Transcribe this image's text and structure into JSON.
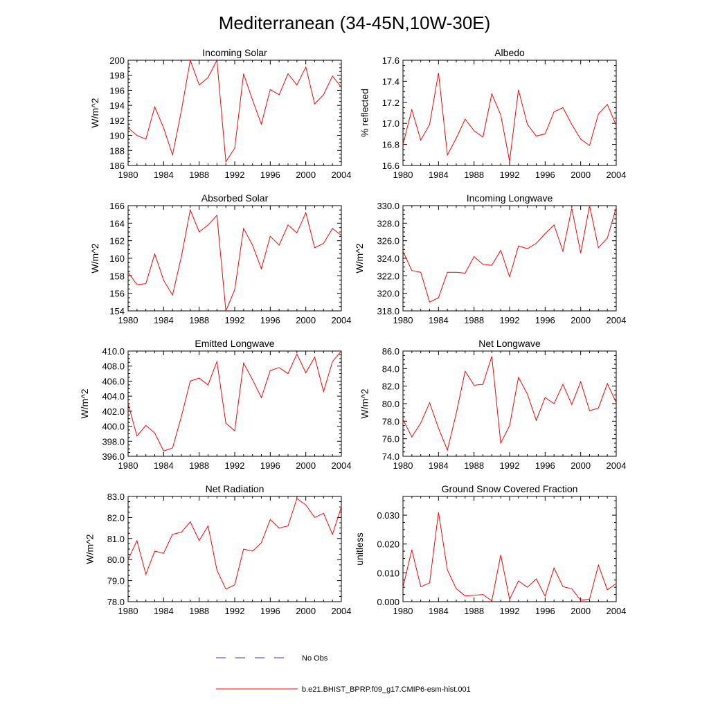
{
  "title": "Mediterranean (34-45N,10W-30E)",
  "chart_data": [
    {
      "type": "line",
      "title": "Incoming Solar",
      "ylabel": "W/m^2",
      "xlim": [
        1980,
        2004
      ],
      "ylim": [
        186,
        200
      ],
      "xticks": [
        "1980",
        "1984",
        "1988",
        "1992",
        "1996",
        "2000",
        "2004"
      ],
      "yticks": [
        "186",
        "188",
        "190",
        "192",
        "194",
        "196",
        "198",
        "200"
      ],
      "x": [
        1980,
        1981,
        1982,
        1983,
        1984,
        1985,
        1986,
        1987,
        1988,
        1989,
        1990,
        1991,
        1992,
        1993,
        1994,
        1995,
        1996,
        1997,
        1998,
        1999,
        2000,
        2001,
        2002,
        2003,
        2004
      ],
      "series": [
        {
          "name": "b.e21.BHIST_BPRP.f09_g17.CMIP6-esm-hist.001",
          "values": [
            191.0,
            190.0,
            189.5,
            193.8,
            191.0,
            187.4,
            193.3,
            200.0,
            196.7,
            197.7,
            200.0,
            186.5,
            188.3,
            198.2,
            194.7,
            191.5,
            196.1,
            195.4,
            198.2,
            196.7,
            199.1,
            194.2,
            195.4,
            197.9,
            196.4
          ]
        }
      ]
    },
    {
      "type": "line",
      "title": "Albedo",
      "ylabel": "% reflected",
      "xlim": [
        1980,
        2004
      ],
      "ylim": [
        16.6,
        17.6
      ],
      "xticks": [
        "1980",
        "1984",
        "1988",
        "1992",
        "1996",
        "2000",
        "2004"
      ],
      "yticks": [
        "16.6",
        "16.8",
        "17.0",
        "17.2",
        "17.4",
        "17.6"
      ],
      "x": [
        1980,
        1981,
        1982,
        1983,
        1984,
        1985,
        1986,
        1987,
        1988,
        1989,
        1990,
        1991,
        1992,
        1993,
        1994,
        1995,
        1996,
        1997,
        1998,
        1999,
        2000,
        2001,
        2002,
        2003,
        2004
      ],
      "series": [
        {
          "name": "b.e21.BHIST_BPRP.f09_g17.CMIP6-esm-hist.001",
          "values": [
            16.8,
            17.13,
            16.84,
            16.99,
            17.48,
            16.7,
            16.86,
            17.04,
            16.93,
            16.87,
            17.28,
            17.08,
            16.64,
            17.32,
            16.99,
            16.88,
            16.9,
            17.11,
            17.15,
            16.99,
            16.85,
            16.79,
            17.09,
            17.18,
            16.98
          ]
        }
      ]
    },
    {
      "type": "line",
      "title": "Absorbed Solar",
      "ylabel": "W/m^2",
      "xlim": [
        1980,
        2004
      ],
      "ylim": [
        154,
        166
      ],
      "xticks": [
        "1980",
        "1984",
        "1988",
        "1992",
        "1996",
        "2000",
        "2004"
      ],
      "yticks": [
        "154",
        "156",
        "158",
        "160",
        "162",
        "164",
        "166"
      ],
      "x": [
        1980,
        1981,
        1982,
        1983,
        1984,
        1985,
        1986,
        1987,
        1988,
        1989,
        1990,
        1991,
        1992,
        1993,
        1994,
        1995,
        1996,
        1997,
        1998,
        1999,
        2000,
        2001,
        2002,
        2003,
        2004
      ],
      "series": [
        {
          "name": "b.e21.BHIST_BPRP.f09_g17.CMIP6-esm-hist.001",
          "values": [
            158.4,
            157.0,
            157.1,
            160.5,
            157.5,
            155.8,
            160.2,
            165.5,
            163.0,
            163.8,
            164.9,
            154.0,
            156.4,
            163.4,
            161.5,
            158.8,
            162.5,
            161.5,
            163.8,
            162.9,
            165.2,
            161.2,
            161.7,
            163.4,
            162.6
          ]
        }
      ]
    },
    {
      "type": "line",
      "title": "Incoming Longwave",
      "ylabel": "W/m^2",
      "xlim": [
        1980,
        2004
      ],
      "ylim": [
        318,
        330
      ],
      "xticks": [
        "1980",
        "1984",
        "1988",
        "1992",
        "1996",
        "2000",
        "2004"
      ],
      "yticks": [
        "318.0",
        "320.0",
        "322.0",
        "324.0",
        "326.0",
        "328.0",
        "330.0"
      ],
      "x": [
        1980,
        1981,
        1982,
        1983,
        1984,
        1985,
        1986,
        1987,
        1988,
        1989,
        1990,
        1991,
        1992,
        1993,
        1994,
        1995,
        1996,
        1997,
        1998,
        1999,
        2000,
        2001,
        2002,
        2003,
        2004
      ],
      "series": [
        {
          "name": "b.e21.BHIST_BPRP.f09_g17.CMIP6-esm-hist.001",
          "values": [
            324.8,
            322.6,
            322.4,
            319.0,
            319.5,
            322.4,
            322.4,
            322.3,
            324.2,
            323.3,
            323.2,
            324.9,
            321.9,
            325.4,
            325.1,
            325.7,
            326.8,
            327.8,
            324.8,
            329.7,
            324.6,
            330.0,
            325.2,
            326.3,
            329.8
          ]
        }
      ]
    },
    {
      "type": "line",
      "title": "Emitted Longwave",
      "ylabel": "W/m^2",
      "xlim": [
        1980,
        2004
      ],
      "ylim": [
        396,
        410
      ],
      "xticks": [
        "1980",
        "1984",
        "1988",
        "1992",
        "1996",
        "2000",
        "2004"
      ],
      "yticks": [
        "396.0",
        "398.0",
        "400.0",
        "402.0",
        "404.0",
        "406.0",
        "408.0",
        "410.0"
      ],
      "x": [
        1980,
        1981,
        1982,
        1983,
        1984,
        1985,
        1986,
        1987,
        1988,
        1989,
        1990,
        1991,
        1992,
        1993,
        1994,
        1995,
        1996,
        1997,
        1998,
        1999,
        2000,
        2001,
        2002,
        2003,
        2004
      ],
      "series": [
        {
          "name": "b.e21.BHIST_BPRP.f09_g17.CMIP6-esm-hist.001",
          "values": [
            403.0,
            398.7,
            400.1,
            399.1,
            396.7,
            397.1,
            401.3,
            406.0,
            406.4,
            405.5,
            408.6,
            400.4,
            399.4,
            408.4,
            406.2,
            403.8,
            407.4,
            407.8,
            407.0,
            409.6,
            407.1,
            409.2,
            404.6,
            408.6,
            410.0
          ]
        }
      ]
    },
    {
      "type": "line",
      "title": "Net Longwave",
      "ylabel": "W/m^2",
      "xlim": [
        1980,
        2004
      ],
      "ylim": [
        74,
        86
      ],
      "xticks": [
        "1980",
        "1984",
        "1988",
        "1992",
        "1996",
        "2000",
        "2004"
      ],
      "yticks": [
        "74.0",
        "76.0",
        "78.0",
        "80.0",
        "82.0",
        "84.0",
        "86.0"
      ],
      "x": [
        1980,
        1981,
        1982,
        1983,
        1984,
        1985,
        1986,
        1987,
        1988,
        1989,
        1990,
        1991,
        1992,
        1993,
        1994,
        1995,
        1996,
        1997,
        1998,
        1999,
        2000,
        2001,
        2002,
        2003,
        2004
      ],
      "series": [
        {
          "name": "b.e21.BHIST_BPRP.f09_g17.CMIP6-esm-hist.001",
          "values": [
            78.2,
            76.2,
            77.8,
            80.1,
            77.2,
            74.7,
            78.9,
            83.7,
            82.1,
            82.2,
            85.4,
            75.5,
            77.5,
            83.0,
            81.1,
            78.1,
            80.7,
            80.0,
            82.2,
            79.9,
            82.5,
            79.2,
            79.5,
            82.3,
            80.1
          ]
        }
      ]
    },
    {
      "type": "line",
      "title": "Net Radiation",
      "ylabel": "W/m^2",
      "xlim": [
        1980,
        2004
      ],
      "ylim": [
        78,
        83
      ],
      "xticks": [
        "1980",
        "1984",
        "1988",
        "1992",
        "1996",
        "2000",
        "2004"
      ],
      "yticks": [
        "78.0",
        "79.0",
        "80.0",
        "81.0",
        "82.0",
        "83.0"
      ],
      "x": [
        1980,
        1981,
        1982,
        1983,
        1984,
        1985,
        1986,
        1987,
        1988,
        1989,
        1990,
        1991,
        1992,
        1993,
        1994,
        1995,
        1996,
        1997,
        1998,
        1999,
        2000,
        2001,
        2002,
        2003,
        2004
      ],
      "series": [
        {
          "name": "b.e21.BHIST_BPRP.f09_g17.CMIP6-esm-hist.001",
          "values": [
            80.0,
            80.9,
            79.3,
            80.4,
            80.3,
            81.2,
            81.3,
            81.8,
            80.9,
            81.6,
            79.5,
            78.6,
            78.8,
            80.5,
            80.4,
            80.8,
            81.9,
            81.5,
            81.6,
            82.9,
            82.6,
            82.0,
            82.2,
            81.2,
            82.5
          ]
        }
      ]
    },
    {
      "type": "line",
      "title": "Ground Snow Covered Fraction",
      "ylabel": "unitless",
      "xlim": [
        1980,
        2004
      ],
      "ylim": [
        0.0,
        0.0365
      ],
      "xticks": [
        "1980",
        "1984",
        "1988",
        "1992",
        "1996",
        "2000",
        "2004"
      ],
      "yticks": [
        "0.000",
        "0.010",
        "0.020",
        "0.030"
      ],
      "ytick_values": [
        0.0,
        0.01,
        0.02,
        0.03
      ],
      "x": [
        1980,
        1981,
        1982,
        1983,
        1984,
        1985,
        1986,
        1987,
        1988,
        1989,
        1990,
        1991,
        1992,
        1993,
        1994,
        1995,
        1996,
        1997,
        1998,
        1999,
        2000,
        2001,
        2002,
        2003,
        2004
      ],
      "series": [
        {
          "name": "b.e21.BHIST_BPRP.f09_g17.CMIP6-esm-hist.001",
          "values": [
            0.005,
            0.018,
            0.0052,
            0.0065,
            0.031,
            0.011,
            0.0045,
            0.002,
            0.0022,
            0.0025,
            0.0003,
            0.0162,
            0.0008,
            0.0072,
            0.005,
            0.0079,
            0.0019,
            0.0117,
            0.0052,
            0.0045,
            0.0005,
            0.0009,
            0.0127,
            0.0041,
            0.0063
          ]
        }
      ]
    }
  ],
  "legend": [
    {
      "label": "No Obs",
      "color": "#3333cc",
      "dash": true
    },
    {
      "label": "b.e21.BHIST_BPRP.f09_g17.CMIP6-esm-hist.001",
      "color": "#ff0000",
      "dash": false
    }
  ],
  "colors": {
    "series": "#ff0000",
    "obs": "#3333cc",
    "axis": "#000000"
  }
}
